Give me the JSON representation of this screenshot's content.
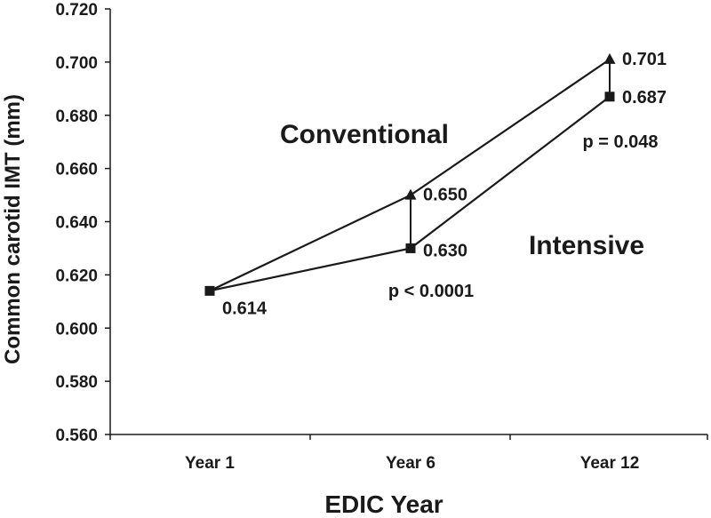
{
  "chart_data": {
    "type": "line",
    "categories": [
      "Year 1",
      "Year 6",
      "Year 12"
    ],
    "xlabel": "EDIC Year",
    "ylabel": "Common carotid IMT (mm)",
    "ylim": [
      0.56,
      0.72
    ],
    "yticks": [
      "0.560",
      "0.580",
      "0.600",
      "0.620",
      "0.640",
      "0.660",
      "0.680",
      "0.700",
      "0.720"
    ],
    "grid": false,
    "series": [
      {
        "name": "Conventional",
        "marker": "triangle",
        "values": [
          0.614,
          0.65,
          0.701
        ],
        "labels": [
          "",
          "0.650",
          "0.701"
        ],
        "color": "#1a1a1a"
      },
      {
        "name": "Intensive",
        "marker": "square",
        "values": [
          0.614,
          0.63,
          0.687
        ],
        "labels": [
          "0.614",
          "0.630",
          "0.687"
        ],
        "color": "#1a1a1a"
      }
    ],
    "annotations": [
      {
        "category": "Year 6",
        "text": "p < 0.0001"
      },
      {
        "category": "Year 12",
        "text": "p = 0.048"
      }
    ]
  }
}
